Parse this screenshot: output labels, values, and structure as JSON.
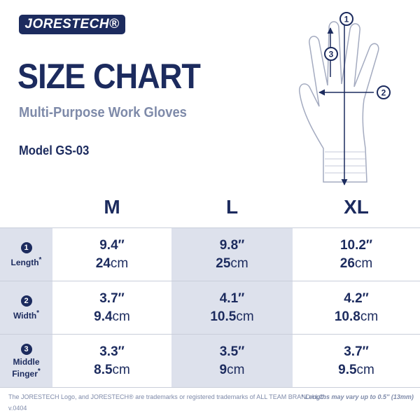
{
  "header": {
    "logo": "JORESTECH®",
    "title": "SIZE CHART",
    "subtitle": "Multi-Purpose Work Gloves",
    "model": "Model GS-03"
  },
  "diagram": {
    "markers": [
      "1",
      "2",
      "3"
    ]
  },
  "table": {
    "columns": [
      "M",
      "L",
      "XL"
    ],
    "rows": [
      {
        "number": "1",
        "label": "Length",
        "note": "*",
        "cells": [
          {
            "inches": "9.4″",
            "metric": "24",
            "unit": "cm"
          },
          {
            "inches": "9.8″",
            "metric": "25",
            "unit": "cm"
          },
          {
            "inches": "10.2″",
            "metric": "26",
            "unit": "cm"
          }
        ]
      },
      {
        "number": "2",
        "label": "Width",
        "note": "*",
        "cells": [
          {
            "inches": "3.7″",
            "metric": "9.4",
            "unit": "cm"
          },
          {
            "inches": "4.1″",
            "metric": "10.5",
            "unit": "cm"
          },
          {
            "inches": "4.2″",
            "metric": "10.8",
            "unit": "cm"
          }
        ]
      },
      {
        "number": "3",
        "label": "Middle Finger",
        "note": "*",
        "cells": [
          {
            "inches": "3.3″",
            "metric": "8.5",
            "unit": "cm"
          },
          {
            "inches": "3.5″",
            "metric": "9",
            "unit": "cm"
          },
          {
            "inches": "3.7″",
            "metric": "9.5",
            "unit": "cm"
          }
        ]
      }
    ]
  },
  "footer": {
    "trademark": "The JORESTECH Logo, and JORESTECH® are trademarks or registered trademarks of ALL TEAM BRAND LLC.",
    "version": "v.0404",
    "disclaimer": "* Lengths may vary up to 0.5″ (13mm)"
  }
}
